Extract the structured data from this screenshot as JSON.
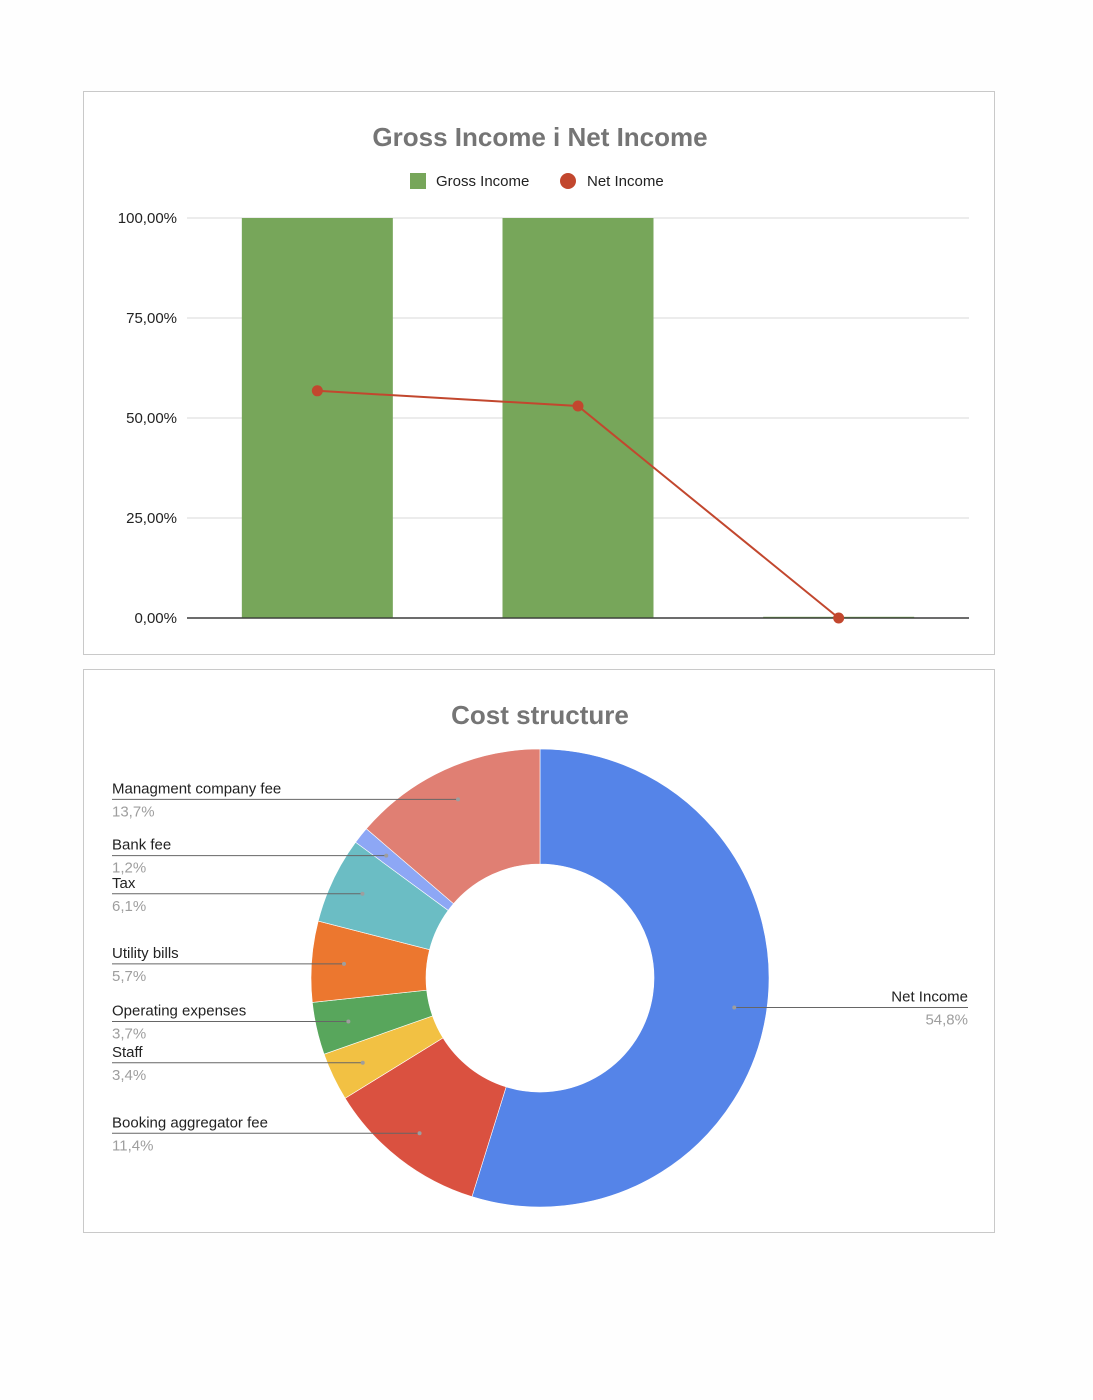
{
  "chart_data": [
    {
      "type": "bar",
      "title": "Gross Income i Net Income",
      "categories": [
        "",
        "",
        ""
      ],
      "y_ticks": [
        "100,00%",
        "75,00%",
        "50,00%",
        "25,00%",
        "0,00%"
      ],
      "ylim": [
        0,
        100
      ],
      "grid": true,
      "legend_position": "top",
      "series": [
        {
          "name": "Gross Income",
          "kind": "bar",
          "color": "#77a65a",
          "values": [
            100,
            100,
            0.3
          ]
        },
        {
          "name": "Net Income",
          "kind": "line",
          "color": "#c2472e",
          "values": [
            56.8,
            53,
            0
          ]
        }
      ]
    },
    {
      "type": "pie",
      "title": "Cost structure",
      "donut": true,
      "start_angle_deg": 0,
      "slices": [
        {
          "label": "Net Income",
          "pct_text": "54,8%",
          "value": 54.8,
          "color": "#5584e8"
        },
        {
          "label": "Booking aggregator fee",
          "pct_text": "11,4%",
          "value": 11.4,
          "color": "#da5140"
        },
        {
          "label": "Staff",
          "pct_text": "3,4%",
          "value": 3.4,
          "color": "#f2c143"
        },
        {
          "label": "Operating expenses",
          "pct_text": "3,7%",
          "value": 3.7,
          "color": "#58a65c"
        },
        {
          "label": "Utility bills",
          "pct_text": "5,7%",
          "value": 5.7,
          "color": "#ec772f"
        },
        {
          "label": "Tax",
          "pct_text": "6,1%",
          "value": 6.1,
          "color": "#6bbdc4"
        },
        {
          "label": "Bank fee",
          "pct_text": "1,2%",
          "value": 1.2,
          "color": "#8da7f5"
        },
        {
          "label": "Managment company fee",
          "pct_text": "13,7%",
          "value": 13.7,
          "color": "#e07f73"
        }
      ]
    }
  ]
}
